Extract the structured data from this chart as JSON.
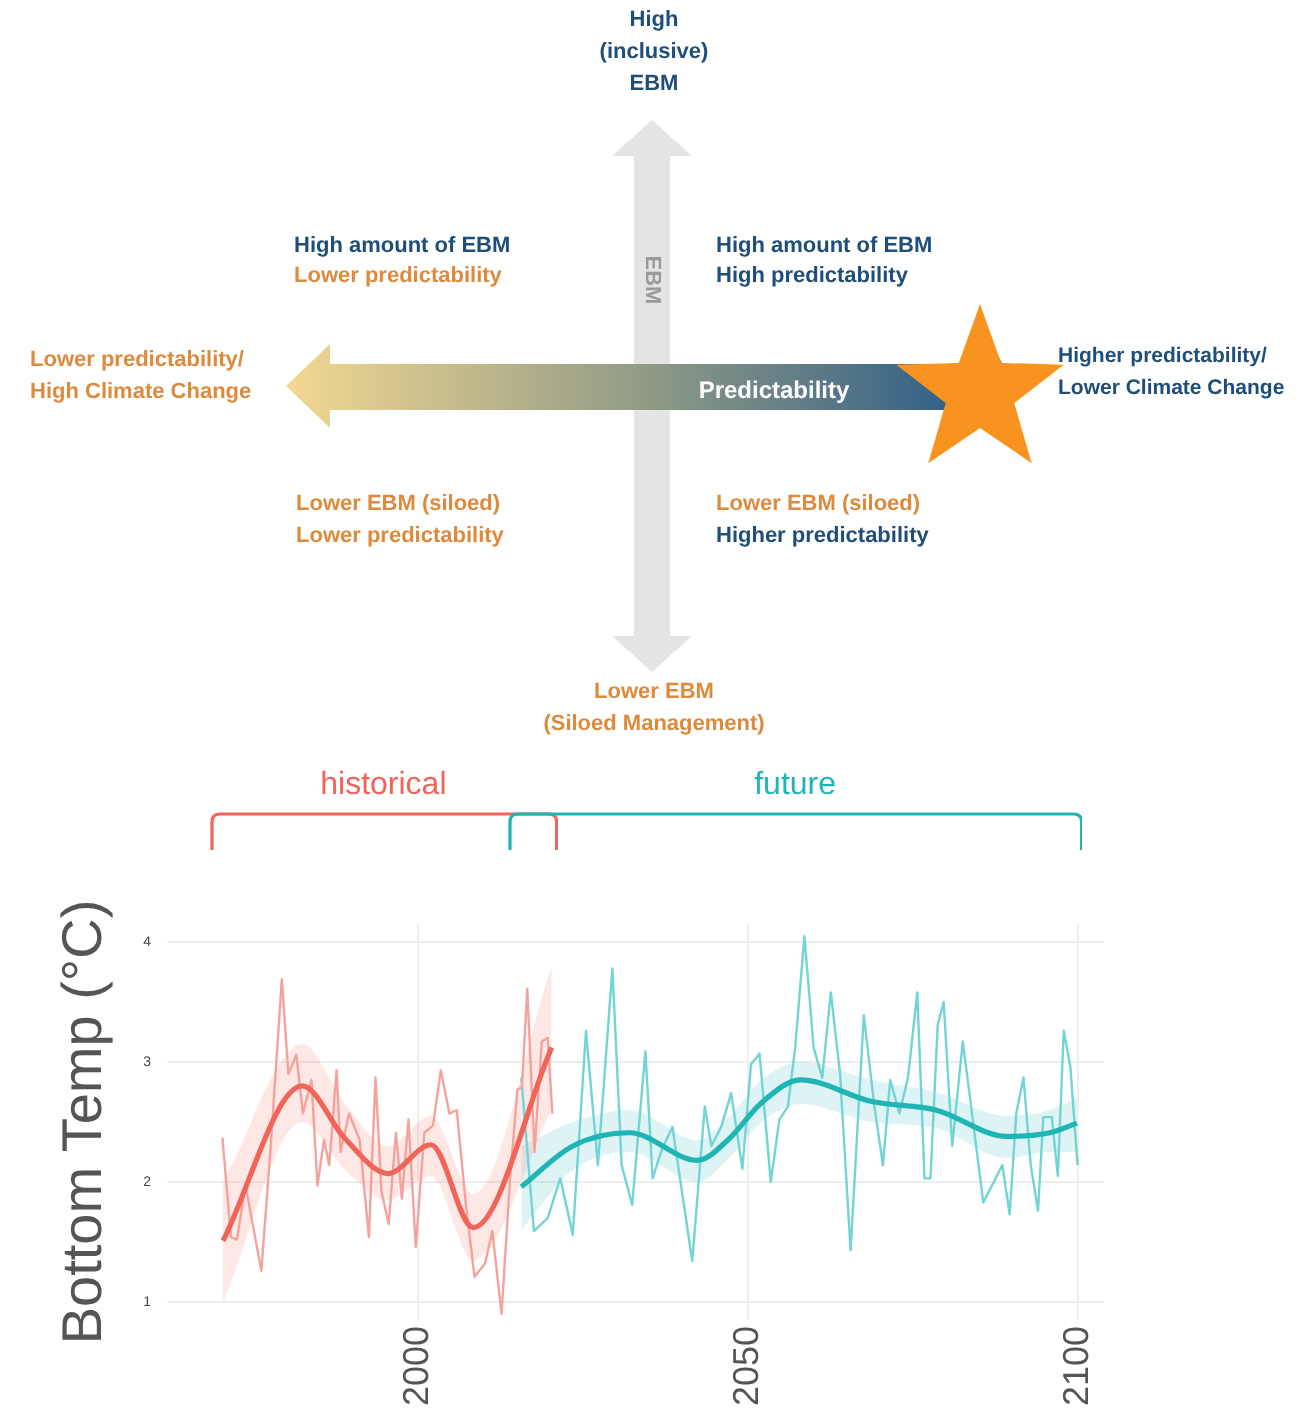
{
  "chart_data": [
    {
      "type": "other",
      "annotations": [
        "High\n(inclusive)\nEBM",
        "High amount of EBM",
        "Lower predictability",
        "High amount of EBM",
        "High predictability",
        "Lower predictability/\nHigh Climate Change",
        "Predictability",
        "Higher predictability/\nLower Climate Change",
        "EBM",
        "Lower EBM (siloed)",
        "Lower predictability",
        "Lower EBM (siloed)",
        "Higher predictability",
        "Lower EBM\n(Siloed Management)"
      ]
    },
    {
      "type": "line",
      "ylabel": "Bottom Temp (°C)",
      "xlim": [
        1962,
        2104
      ],
      "xticks": [
        2000,
        2050,
        2100
      ],
      "ylim": [
        0.85,
        4.15
      ],
      "yticks": [
        1,
        2,
        3,
        4
      ],
      "grid": true,
      "marker": "none",
      "line_style": "solid",
      "series": [
        {
          "color": "#f4a29c",
          "x": [
            1970.4,
            1971.7,
            1972.6,
            1973.9,
            1976.3,
            1977.7,
            1979.4,
            1980.4,
            1981.6,
            1982.6,
            1983.9,
            1984.8,
            1985.8,
            1986.6,
            1987.7,
            1988.3,
            1989.6,
            1991.2,
            1992.6,
            1993.6,
            1994.5,
            1995.6,
            1996.7,
            1997.6,
            1998.6,
            1999.7,
            2001.0,
            2002.3,
            2003.5,
            2004.8,
            2005.9,
            2007.3,
            2008.6,
            2010.2,
            2011.3,
            2012.7,
            2014.0,
            2015.1,
            2015.8,
            2016.6,
            2017.7,
            2018.8,
            2019.7,
            2020.4
          ],
          "values": [
            2.37,
            1.54,
            1.52,
            1.97,
            1.26,
            2.28,
            3.69,
            2.9,
            3.06,
            2.57,
            2.85,
            1.97,
            2.35,
            2.14,
            2.93,
            2.25,
            2.57,
            2.35,
            1.54,
            2.87,
            1.92,
            1.65,
            2.41,
            1.86,
            2.52,
            1.46,
            2.41,
            2.47,
            2.93,
            2.57,
            2.6,
            1.81,
            1.21,
            1.32,
            1.59,
            0.9,
            2.03,
            2.77,
            2.79,
            3.61,
            2.25,
            3.17,
            3.2,
            2.57
          ]
        },
        {
          "name": "historical",
          "color": "#f0645a",
          "x": [
            1970.5,
            1982.5,
            1989,
            1995.5,
            2002,
            2008.4,
            2020.3
          ],
          "values": [
            1.51,
            2.8,
            2.36,
            2.07,
            2.31,
            1.62,
            3.12
          ],
          "lower": [
            1.0,
            2.5,
            2.1,
            1.85,
            2.05,
            1.35,
            2.6
          ],
          "upper": [
            2.0,
            3.15,
            2.65,
            2.3,
            2.55,
            1.9,
            3.8
          ]
        },
        {
          "color": "#72d4d4",
          "x": [
            2015.7,
            2017.6,
            2019.7,
            2021.6,
            2023.5,
            2025.5,
            2027.3,
            2029.5,
            2030.9,
            2032.5,
            2034.5,
            2035.6,
            2037.0,
            2038.6,
            2039.9,
            2041.6,
            2043.5,
            2044.5,
            2046.0,
            2047.5,
            2049.2,
            2050.5,
            2051.8,
            2053.5,
            2054.8,
            2056.1,
            2057.2,
            2058.6,
            2060.0,
            2061.3,
            2062.6,
            2064.0,
            2065.6,
            2067.6,
            2069.2,
            2070.5,
            2071.6,
            2073.0,
            2074.3,
            2075.7,
            2076.8,
            2077.7,
            2078.8,
            2079.7,
            2081.0,
            2082.6,
            2084.0,
            2085.7,
            2088.6,
            2089.7,
            2090.7,
            2091.8,
            2092.9,
            2094.0,
            2094.8,
            2096.1,
            2097.0,
            2097.9,
            2098.9,
            2100.0
          ],
          "values": [
            2.87,
            1.59,
            1.7,
            2.03,
            1.56,
            3.26,
            2.14,
            3.78,
            2.14,
            1.81,
            3.09,
            2.03,
            2.27,
            2.46,
            1.97,
            1.34,
            2.63,
            2.3,
            2.46,
            2.74,
            2.11,
            2.98,
            3.07,
            2.0,
            2.52,
            2.63,
            3.12,
            4.05,
            3.12,
            2.87,
            3.58,
            2.9,
            1.43,
            3.39,
            2.63,
            2.14,
            2.85,
            2.57,
            2.87,
            3.58,
            2.03,
            2.03,
            3.31,
            3.5,
            2.3,
            3.17,
            2.57,
            1.83,
            2.14,
            1.73,
            2.57,
            2.87,
            2.14,
            1.76,
            2.54,
            2.54,
            2.05,
            3.26,
            2.96,
            2.14
          ]
        },
        {
          "name": "future",
          "color": "#1fb5b5",
          "x": [
            2015.7,
            2023.5,
            2032.1,
            2042.4,
            2047.2,
            2052.1,
            2058.0,
            2068.8,
            2078.5,
            2089.3,
            2095.8,
            2099.9
          ],
          "values": [
            1.96,
            2.3,
            2.41,
            2.18,
            2.36,
            2.66,
            2.85,
            2.67,
            2.6,
            2.38,
            2.41,
            2.49
          ],
          "lower": [
            1.6,
            2.1,
            2.25,
            2.0,
            2.2,
            2.5,
            2.65,
            2.5,
            2.45,
            2.2,
            2.25,
            2.25
          ],
          "upper": [
            2.3,
            2.5,
            2.6,
            2.35,
            2.55,
            2.85,
            3.0,
            2.85,
            2.75,
            2.55,
            2.6,
            2.7
          ]
        }
      ]
    }
  ]
}
